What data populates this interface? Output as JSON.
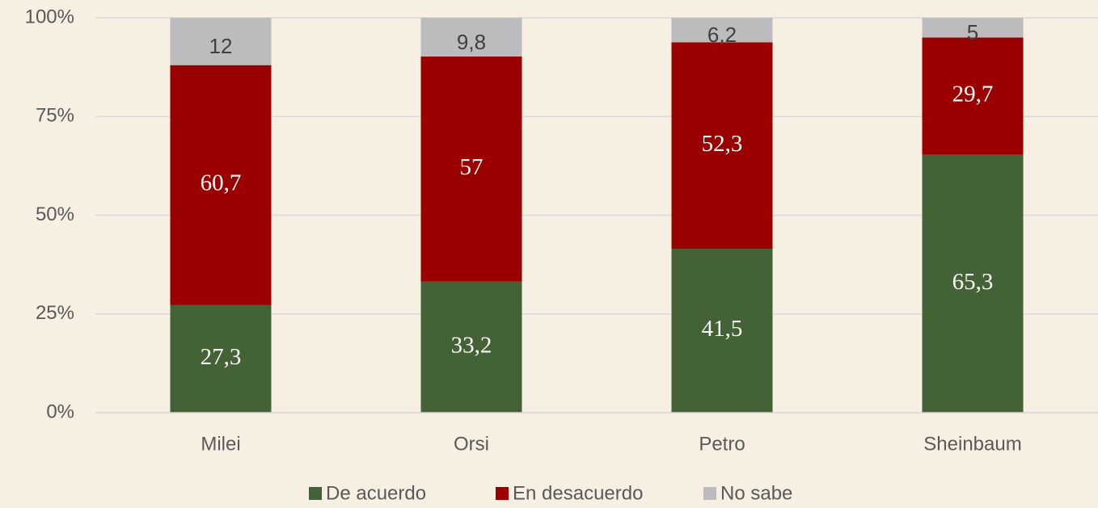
{
  "chart_data": {
    "type": "bar",
    "stacked": true,
    "categories": [
      "Milei",
      "Orsi",
      "Petro",
      "Sheinbaum"
    ],
    "series": [
      {
        "name": "De acuerdo",
        "color": "#436235",
        "values": [
          27.3,
          33.2,
          41.5,
          65.3
        ],
        "value_labels": [
          "27,3",
          "33,2",
          "41,5",
          "65,3"
        ]
      },
      {
        "name": "En desacuerdo",
        "color": "#9b0000",
        "values": [
          60.7,
          57,
          52.3,
          29.7
        ],
        "value_labels": [
          "60,7",
          "57",
          "52,3",
          "29,7"
        ]
      },
      {
        "name": "No sabe",
        "color": "#bcbbbd",
        "values": [
          12,
          9.8,
          6.2,
          5
        ],
        "value_labels": [
          "12",
          "9,8",
          "6,2",
          "5"
        ]
      }
    ],
    "ylim": [
      0,
      100
    ],
    "yticks": [
      {
        "value": 0,
        "label": "0%"
      },
      {
        "value": 25,
        "label": "25%"
      },
      {
        "value": 50,
        "label": "50%"
      },
      {
        "value": 75,
        "label": "75%"
      },
      {
        "value": 100,
        "label": "100%"
      }
    ],
    "grid": true,
    "legend": "bottom"
  }
}
